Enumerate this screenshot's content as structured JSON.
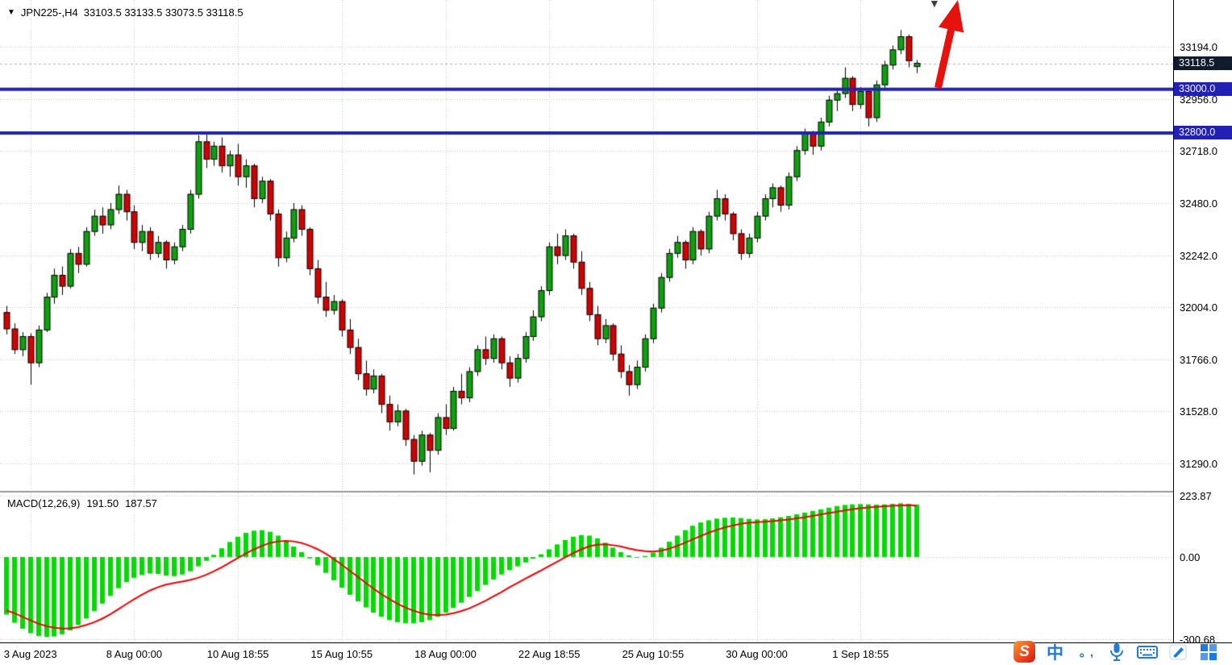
{
  "header": {
    "symbol_period": "JPN225-,H4",
    "ohlc": "33103.5 33133.5 33073.5 33118.5"
  },
  "chart_data": {
    "type": "candlestick",
    "symbol": "JPN225-",
    "timeframe": "H4",
    "title": "JPN225-,H4",
    "price_axis": {
      "ticks": [
        "33194.0",
        "32956.0",
        "32718.0",
        "32480.0",
        "32242.0",
        "32004.0",
        "31766.0",
        "31528.0",
        "31290.0"
      ],
      "current_price": "33118.5",
      "current_price_value": 33118.5,
      "levels": [
        {
          "price": 33000.0,
          "label": "33000.0",
          "color": "#2121b4"
        },
        {
          "price": 32800.0,
          "label": "32800.0",
          "color": "#2121b4"
        }
      ]
    },
    "time_axis": {
      "labels": [
        "3 Aug 2023",
        "8 Aug 00:00",
        "10 Aug 18:55",
        "15 Aug 10:55",
        "18 Aug 00:00",
        "22 Aug 18:55",
        "25 Aug 10:55",
        "30 Aug 00:00",
        "1 Sep 18:55"
      ],
      "candle_indices": [
        3,
        16,
        29,
        42,
        55,
        68,
        81,
        94,
        107
      ]
    },
    "candles": [
      [
        31980,
        32010,
        31880,
        31905
      ],
      [
        31905,
        31930,
        31790,
        31810
      ],
      [
        31810,
        31890,
        31780,
        31870
      ],
      [
        31870,
        31885,
        31650,
        31750
      ],
      [
        31750,
        31920,
        31730,
        31900
      ],
      [
        31900,
        32070,
        31890,
        32050
      ],
      [
        32050,
        32180,
        32020,
        32150
      ],
      [
        32150,
        32190,
        32060,
        32100
      ],
      [
        32100,
        32270,
        32090,
        32250
      ],
      [
        32250,
        32280,
        32160,
        32200
      ],
      [
        32200,
        32370,
        32190,
        32350
      ],
      [
        32350,
        32450,
        32330,
        32420
      ],
      [
        32420,
        32460,
        32340,
        32380
      ],
      [
        32380,
        32480,
        32360,
        32450
      ],
      [
        32450,
        32560,
        32430,
        32520
      ],
      [
        32520,
        32540,
        32400,
        32440
      ],
      [
        32440,
        32470,
        32270,
        32300
      ],
      [
        32300,
        32380,
        32260,
        32350
      ],
      [
        32350,
        32370,
        32220,
        32250
      ],
      [
        32250,
        32330,
        32230,
        32300
      ],
      [
        32300,
        32310,
        32180,
        32220
      ],
      [
        32220,
        32300,
        32200,
        32280
      ],
      [
        32280,
        32380,
        32260,
        32360
      ],
      [
        32360,
        32540,
        32340,
        32520
      ],
      [
        32520,
        32790,
        32500,
        32760
      ],
      [
        32760,
        32800,
        32640,
        32680
      ],
      [
        32680,
        32760,
        32650,
        32740
      ],
      [
        32740,
        32780,
        32620,
        32650
      ],
      [
        32650,
        32720,
        32600,
        32700
      ],
      [
        32700,
        32750,
        32560,
        32600
      ],
      [
        32600,
        32680,
        32550,
        32650
      ],
      [
        32650,
        32660,
        32460,
        32500
      ],
      [
        32500,
        32600,
        32480,
        32580
      ],
      [
        32580,
        32590,
        32400,
        32430
      ],
      [
        32430,
        32450,
        32190,
        32230
      ],
      [
        32230,
        32350,
        32210,
        32320
      ],
      [
        32320,
        32480,
        32300,
        32450
      ],
      [
        32450,
        32470,
        32330,
        32360
      ],
      [
        32360,
        32370,
        32150,
        32180
      ],
      [
        32180,
        32220,
        32020,
        32050
      ],
      [
        32050,
        32120,
        31960,
        31990
      ],
      [
        31990,
        32060,
        31970,
        32030
      ],
      [
        32030,
        32040,
        31870,
        31900
      ],
      [
        31900,
        31950,
        31790,
        31820
      ],
      [
        31820,
        31860,
        31670,
        31700
      ],
      [
        31700,
        31760,
        31600,
        31630
      ],
      [
        31630,
        31720,
        31610,
        31690
      ],
      [
        31690,
        31700,
        31520,
        31560
      ],
      [
        31560,
        31600,
        31440,
        31480
      ],
      [
        31480,
        31560,
        31460,
        31530
      ],
      [
        31530,
        31540,
        31370,
        31400
      ],
      [
        31400,
        31420,
        31240,
        31300
      ],
      [
        31300,
        31440,
        31280,
        31420
      ],
      [
        31420,
        31430,
        31250,
        31350
      ],
      [
        31350,
        31520,
        31330,
        31500
      ],
      [
        31500,
        31560,
        31420,
        31450
      ],
      [
        31450,
        31640,
        31440,
        31620
      ],
      [
        31620,
        31700,
        31560,
        31590
      ],
      [
        31590,
        31730,
        31570,
        31710
      ],
      [
        31710,
        31830,
        31690,
        31810
      ],
      [
        31810,
        31870,
        31740,
        31770
      ],
      [
        31770,
        31880,
        31750,
        31860
      ],
      [
        31860,
        31870,
        31720,
        31750
      ],
      [
        31750,
        31780,
        31640,
        31680
      ],
      [
        31680,
        31790,
        31660,
        31770
      ],
      [
        31770,
        31890,
        31750,
        31870
      ],
      [
        31870,
        31990,
        31850,
        31960
      ],
      [
        31960,
        32100,
        31940,
        32080
      ],
      [
        32080,
        32300,
        32060,
        32280
      ],
      [
        32280,
        32340,
        32200,
        32240
      ],
      [
        32240,
        32360,
        32220,
        32330
      ],
      [
        32330,
        32340,
        32180,
        32210
      ],
      [
        32210,
        32260,
        32060,
        32090
      ],
      [
        32090,
        32120,
        31940,
        31970
      ],
      [
        31970,
        32010,
        31830,
        31860
      ],
      [
        31860,
        31950,
        31840,
        31920
      ],
      [
        31920,
        31930,
        31760,
        31790
      ],
      [
        31790,
        31830,
        31680,
        31710
      ],
      [
        31710,
        31740,
        31600,
        31650
      ],
      [
        31650,
        31760,
        31630,
        31730
      ],
      [
        31730,
        31880,
        31710,
        31860
      ],
      [
        31860,
        32020,
        31840,
        32000
      ],
      [
        32000,
        32160,
        31980,
        32140
      ],
      [
        32140,
        32270,
        32120,
        32250
      ],
      [
        32250,
        32330,
        32230,
        32300
      ],
      [
        32300,
        32310,
        32180,
        32220
      ],
      [
        32220,
        32370,
        32200,
        32350
      ],
      [
        32350,
        32360,
        32240,
        32270
      ],
      [
        32270,
        32440,
        32250,
        32420
      ],
      [
        32420,
        32540,
        32400,
        32500
      ],
      [
        32500,
        32520,
        32400,
        32430
      ],
      [
        32430,
        32440,
        32310,
        32340
      ],
      [
        32340,
        32360,
        32220,
        32250
      ],
      [
        32250,
        32340,
        32230,
        32320
      ],
      [
        32320,
        32440,
        32300,
        32420
      ],
      [
        32420,
        32520,
        32400,
        32500
      ],
      [
        32500,
        32570,
        32460,
        32550
      ],
      [
        32550,
        32560,
        32440,
        32470
      ],
      [
        32470,
        32620,
        32450,
        32600
      ],
      [
        32600,
        32740,
        32580,
        32720
      ],
      [
        32720,
        32820,
        32700,
        32800
      ],
      [
        32800,
        32810,
        32700,
        32740
      ],
      [
        32740,
        32870,
        32720,
        32850
      ],
      [
        32850,
        32970,
        32830,
        32950
      ],
      [
        32950,
        33000,
        32900,
        32980
      ],
      [
        32980,
        33100,
        32960,
        33050
      ],
      [
        33050,
        33060,
        32900,
        32930
      ],
      [
        32930,
        33010,
        32910,
        32990
      ],
      [
        32990,
        33000,
        32830,
        32870
      ],
      [
        32870,
        33040,
        32850,
        33020
      ],
      [
        33020,
        33130,
        33000,
        33110
      ],
      [
        33110,
        33200,
        33090,
        33180
      ],
      [
        33180,
        33270,
        33160,
        33240
      ],
      [
        33240,
        33250,
        33100,
        33130
      ],
      [
        33103.5,
        33133.5,
        33073.5,
        33118.5
      ]
    ],
    "macd": {
      "label": "MACD(12,26,9)",
      "main_value": "191.50",
      "signal_value": "187.57",
      "axis_ticks": [
        "223.87",
        "0.00",
        "-300.68"
      ],
      "histogram": [
        -210,
        -240,
        -262,
        -278,
        -288,
        -292,
        -290,
        -282,
        -268,
        -248,
        -224,
        -198,
        -170,
        -142,
        -114,
        -92,
        -76,
        -66,
        -60,
        -62,
        -68,
        -70,
        -64,
        -52,
        -34,
        -14,
        8,
        32,
        55,
        74,
        88,
        96,
        98,
        92,
        78,
        58,
        38,
        18,
        -5,
        -30,
        -58,
        -85,
        -112,
        -138,
        -162,
        -184,
        -203,
        -218,
        -230,
        -238,
        -242,
        -242,
        -238,
        -230,
        -218,
        -203,
        -186,
        -167,
        -146,
        -124,
        -102,
        -82,
        -64,
        -48,
        -34,
        -20,
        -6,
        10,
        28,
        46,
        62,
        74,
        80,
        78,
        68,
        52,
        34,
        18,
        6,
        0,
        4,
        16,
        34,
        56,
        78,
        98,
        114,
        126,
        134,
        140,
        143,
        144,
        142,
        139,
        137,
        138,
        141,
        145,
        150,
        156,
        162,
        168,
        174,
        180,
        186,
        190,
        192,
        193,
        192,
        191,
        192,
        194,
        196,
        194,
        191.5
      ],
      "signal": [
        -195,
        -205,
        -218,
        -231,
        -243,
        -252,
        -258,
        -261,
        -260,
        -256,
        -248,
        -238,
        -225,
        -209,
        -191,
        -172,
        -154,
        -137,
        -122,
        -110,
        -101,
        -95,
        -90,
        -84,
        -76,
        -65,
        -52,
        -37,
        -20,
        -3,
        13,
        28,
        41,
        51,
        57,
        59,
        57,
        51,
        41,
        28,
        12,
        -7,
        -28,
        -50,
        -72,
        -94,
        -116,
        -136,
        -154,
        -171,
        -185,
        -196,
        -205,
        -210,
        -212,
        -210,
        -205,
        -197,
        -187,
        -174,
        -160,
        -144,
        -128,
        -111,
        -95,
        -79,
        -64,
        -49,
        -33,
        -17,
        -1,
        14,
        28,
        39,
        45,
        46,
        43,
        38,
        31,
        25,
        21,
        20,
        23,
        30,
        40,
        52,
        65,
        77,
        89,
        99,
        108,
        115,
        121,
        125,
        127,
        129,
        131,
        134,
        137,
        141,
        145,
        150,
        155,
        160,
        165,
        170,
        174,
        178,
        181,
        183,
        185,
        187,
        188,
        189,
        187.6
      ]
    },
    "colors": {
      "bull": "#0da10d",
      "bear": "#d40000",
      "wick": "#000000",
      "grid": "#c8c8c8",
      "level_line": "#2121b4",
      "macd_hist": "#00dc00",
      "macd_signal": "#f20000",
      "current_price_box": "#101b2e"
    },
    "annotation": {
      "trend_arrow": "up",
      "arrow_color": "#e8120c"
    }
  },
  "taskbar": {
    "icons": [
      {
        "name": "sogou-input",
        "glyph": "S"
      },
      {
        "name": "chinese-mode",
        "glyph": "中"
      },
      {
        "name": "punctuation",
        "glyph": "。,"
      },
      {
        "name": "microphone",
        "glyph": ""
      },
      {
        "name": "soft-keyboard",
        "glyph": ""
      },
      {
        "name": "input-skin",
        "glyph": ""
      },
      {
        "name": "toolbox-grid",
        "glyph": ""
      }
    ]
  }
}
